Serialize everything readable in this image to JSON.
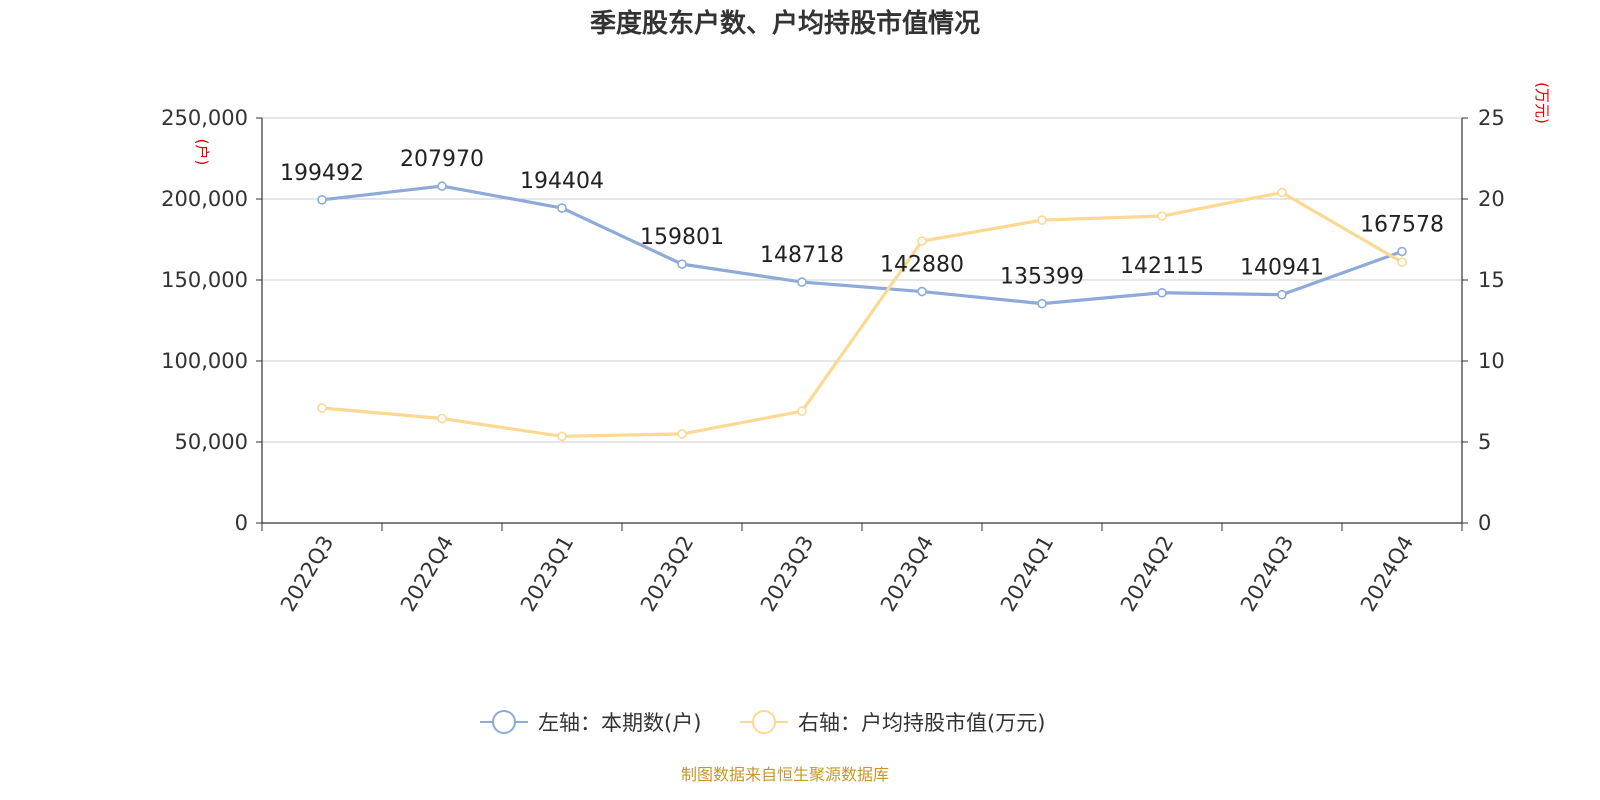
{
  "title": "季度股东户数、户均持股市值情况",
  "source": "制图数据来自恒生聚源数据库",
  "colors": {
    "left_series": "#8eaad8",
    "right_series": "#fcd993",
    "unit_text": "#e00000",
    "source_text": "#c8962c"
  },
  "chart_data": {
    "type": "line",
    "title": "季度股东户数、户均持股市值情况",
    "categories": [
      "2022Q3",
      "2022Q4",
      "2023Q1",
      "2023Q2",
      "2023Q3",
      "2023Q4",
      "2024Q1",
      "2024Q2",
      "2024Q3",
      "2024Q4"
    ],
    "left_axis": {
      "unit": "(户)",
      "ylim": [
        0,
        250000
      ],
      "ticks": [
        "0",
        "50,000",
        "100,000",
        "150,000",
        "200,000",
        "250,000"
      ]
    },
    "right_axis": {
      "unit": "(万元)",
      "ylim": [
        0,
        25
      ],
      "ticks": [
        "0",
        "5",
        "10",
        "15",
        "20",
        "25"
      ]
    },
    "grid": true,
    "legend_position": "bottom",
    "series": [
      {
        "name": "左轴：本期数(户)",
        "axis": "left",
        "color": "#8eaad8",
        "values": [
          199492,
          207970,
          194404,
          159801,
          148718,
          142880,
          135399,
          142115,
          140941,
          167578
        ],
        "labels": [
          "199492",
          "207970",
          "194404",
          "159801",
          "148718",
          "142880",
          "135399",
          "142115",
          "140941",
          "167578"
        ]
      },
      {
        "name": "右轴：户均持股市值(万元)",
        "axis": "right",
        "color": "#fcd993",
        "values": [
          7.1,
          6.45,
          5.35,
          5.5,
          6.9,
          17.4,
          18.7,
          18.95,
          20.4,
          16.1
        ]
      }
    ]
  }
}
